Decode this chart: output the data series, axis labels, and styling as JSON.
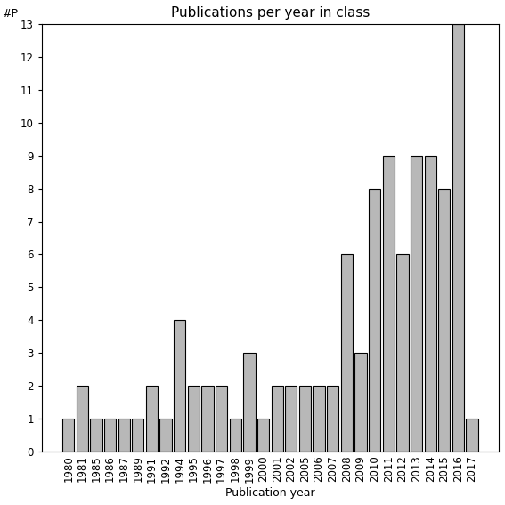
{
  "title": "Publications per year in class",
  "xlabel": "Publication year",
  "ylabel": "#P",
  "categories": [
    "1980",
    "1981",
    "1985",
    "1986",
    "1987",
    "1989",
    "1991",
    "1992",
    "1994",
    "1995",
    "1996",
    "1997",
    "1998",
    "1999",
    "2000",
    "2001",
    "2002",
    "2005",
    "2006",
    "2007",
    "2008",
    "2009",
    "2010",
    "2011",
    "2012",
    "2013",
    "2014",
    "2015",
    "2016",
    "2017"
  ],
  "values": [
    1,
    2,
    1,
    1,
    1,
    1,
    2,
    1,
    4,
    2,
    2,
    2,
    1,
    3,
    1,
    2,
    2,
    2,
    2,
    2,
    6,
    3,
    8,
    9,
    6,
    9,
    9,
    8,
    13,
    1
  ],
  "bar_color": "#b8b8b8",
  "bar_edge_color": "#000000",
  "bar_linewidth": 0.8,
  "ylim_max": 13,
  "yticks": [
    0,
    1,
    2,
    3,
    4,
    5,
    6,
    7,
    8,
    9,
    10,
    11,
    12,
    13
  ],
  "background_color": "#ffffff",
  "title_fontsize": 11,
  "label_fontsize": 9,
  "tick_fontsize": 8.5,
  "ylabel_fontsize": 9
}
